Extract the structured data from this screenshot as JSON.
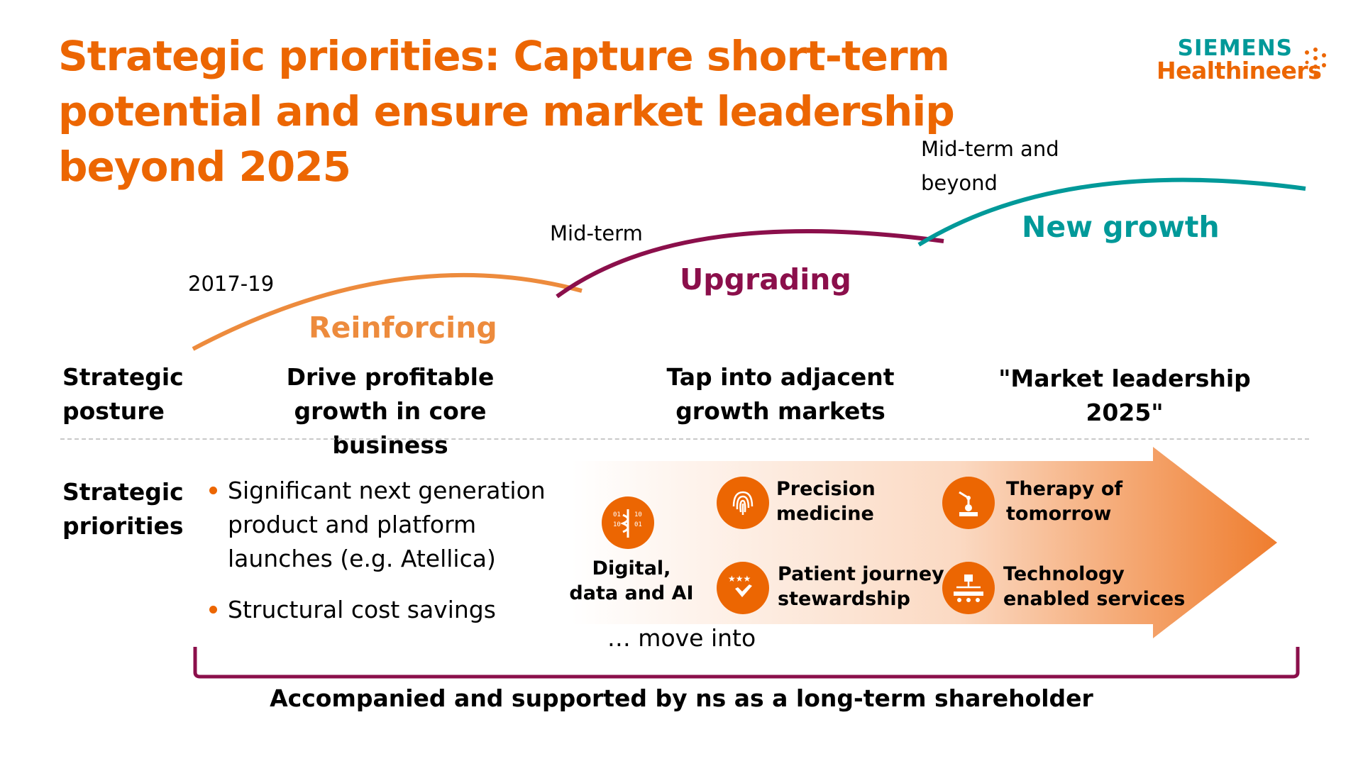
{
  "title": "Strategic priorities: Capture short-term potential and ensure market leadership beyond 2025",
  "logo": {
    "line1": "SIEMENS",
    "line2": "Healthineers"
  },
  "colors": {
    "orange": "#ec6602",
    "light_orange": "#ed8b3d",
    "purple": "#8b0f4b",
    "teal": "#009999"
  },
  "phases": [
    {
      "time": "2017-19",
      "name": "Reinforcing",
      "posture": "Drive profitable growth in core business"
    },
    {
      "time": "Mid-term",
      "name": "Upgrading",
      "posture": "Tap into adjacent growth markets"
    },
    {
      "time": "Mid-term and beyond",
      "name": "New growth",
      "posture": "\"Market leadership 2025\""
    }
  ],
  "row_headers": {
    "posture": "Strategic posture",
    "priorities": "Strategic priorities"
  },
  "bullets": [
    "Significant next generation product and platform launches (e.g. Atellica)",
    "Structural cost savings"
  ],
  "priorities": [
    {
      "label": "Digital, data and AI",
      "icon": "digital-data-icon"
    },
    {
      "label": "Precision medicine",
      "icon": "fingerprint-icon"
    },
    {
      "label": "Therapy of tomorrow",
      "icon": "robot-arm-icon"
    },
    {
      "label": "Patient journey stewardship",
      "icon": "rating-hand-icon"
    },
    {
      "label": "Technology enabled services",
      "icon": "service-network-icon"
    }
  ],
  "move_into": "… move into",
  "footer": "Accompanied and supported by  ns as a long-term shareholder"
}
